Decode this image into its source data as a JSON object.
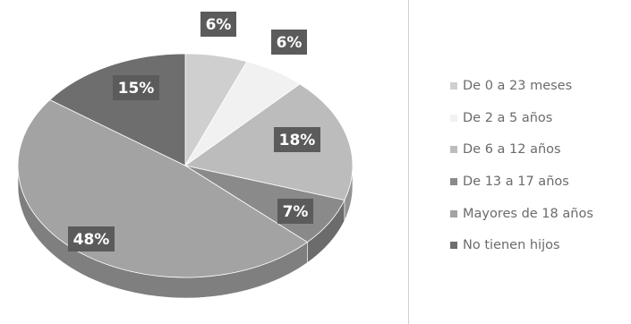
{
  "chart_data": {
    "type": "pie",
    "title": "",
    "legend_position": "right",
    "slices": [
      {
        "name": "De 0 a 23 meses",
        "value": 6,
        "label": "6%",
        "color": "#cfcfcf"
      },
      {
        "name": "De 2 a 5 años",
        "value": 6,
        "label": "6%",
        "color": "#f1f1f1"
      },
      {
        "name": "De 6 a 12 años",
        "value": 18,
        "label": "18%",
        "color": "#bcbcbc"
      },
      {
        "name": "De 13 a 17 años",
        "value": 7,
        "label": "7%",
        "color": "#8a8a8a"
      },
      {
        "name": "Mayores de 18 años",
        "value": 48,
        "label": "48%",
        "color": "#a3a3a3"
      },
      {
        "name": "No tienen hijos",
        "value": 15,
        "label": "15%",
        "color": "#6e6e6e"
      }
    ],
    "label_box_color": "#5b5b5b"
  }
}
